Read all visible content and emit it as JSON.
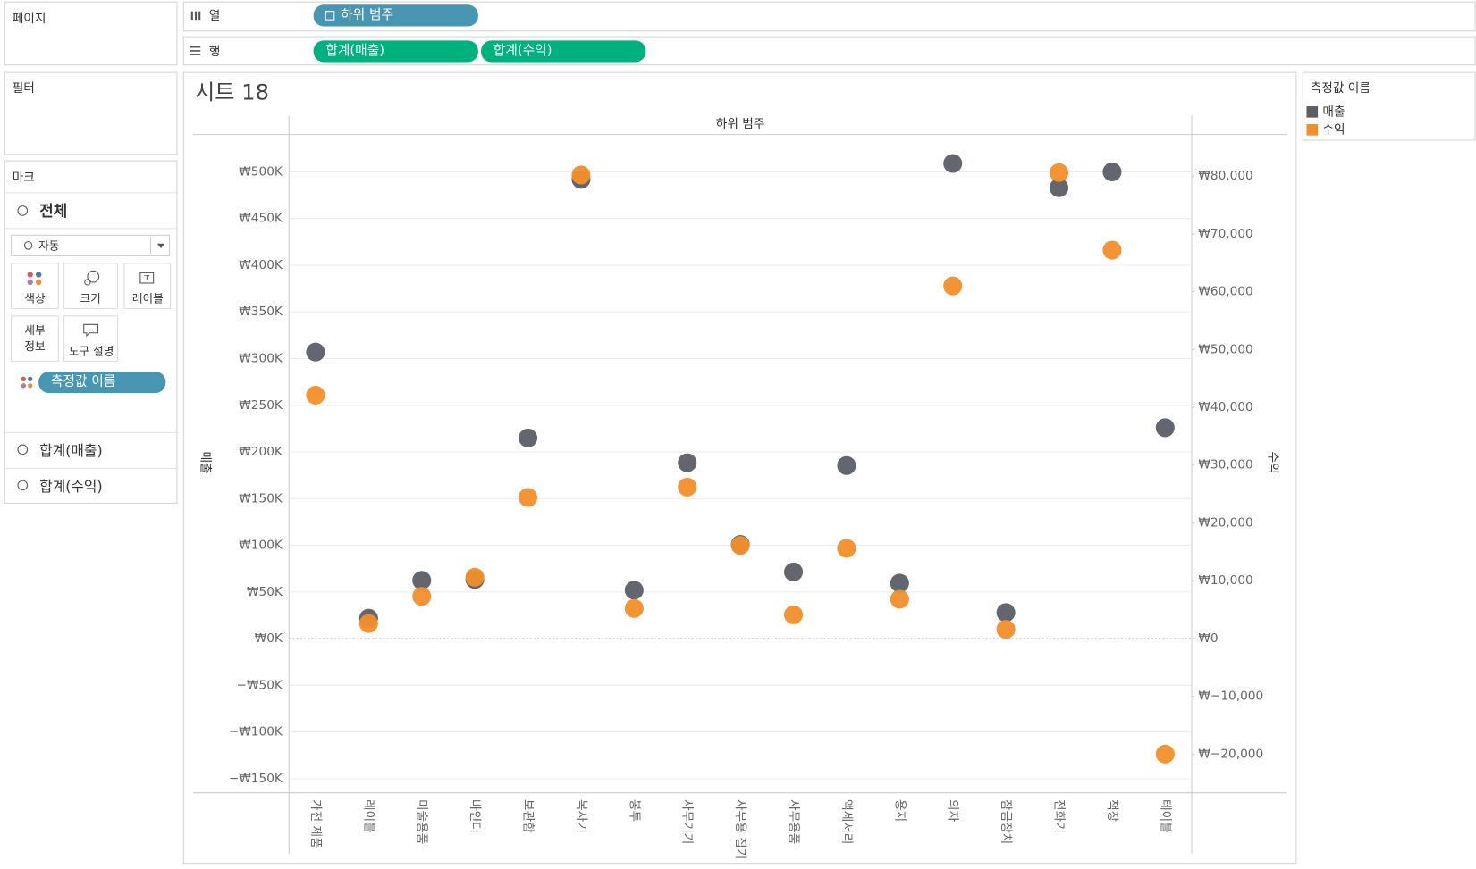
{
  "ui": {
    "pages": "페이지",
    "columns_label": "열",
    "columns_pills": [
      "하위 범주"
    ],
    "rows_label": "행",
    "rows_pills": [
      "합계(매출)",
      "합계(수익)"
    ],
    "filters": "필터",
    "marks": "마크",
    "marks_all": "전체",
    "mark_type": "자동",
    "mark_buttons": [
      "색상",
      "크기",
      "레이블"
    ],
    "detail_lines": [
      "세부",
      "정보"
    ],
    "tooltip": "도구 설명",
    "marks_pill": "측정값 이름",
    "marks_cards": [
      "합계(매출)",
      "합계(수익)"
    ],
    "sheet_title": "시트 18"
  },
  "chart_data": {
    "type": "scatter",
    "x_label": "하위 범주",
    "y_label": "매출",
    "y2_label": "수익",
    "legend_title": "측정값 이름",
    "legend": "right",
    "grid": true,
    "categories": [
      "가전 제품",
      "레이블",
      "미술용품",
      "바인더",
      "보관함",
      "복사기",
      "봉투",
      "사무기기",
      "사무용 집기",
      "사무용품",
      "액세서리",
      "용지",
      "의자",
      "잠금장치",
      "전화기",
      "책장",
      "테이블"
    ],
    "series": [
      {
        "name": "매출",
        "color": "#5b5e66",
        "values": [
          307000,
          22000,
          62500,
          63500,
          215000,
          492000,
          52000,
          188500,
          101000,
          71500,
          185500,
          59500,
          509000,
          28000,
          483000,
          500000,
          226000
        ]
      },
      {
        "name": "수익",
        "color": "#f28e2b",
        "axis": "y2",
        "values": [
          42100,
          2600,
          7300,
          10600,
          24400,
          80200,
          5200,
          26200,
          16100,
          4100,
          15600,
          6800,
          61000,
          1600,
          80600,
          67200,
          -20000
        ]
      }
    ],
    "ylim": [
      -165000,
      540000
    ],
    "yticks": [
      {
        "value": -150000,
        "label": "−₩150K"
      },
      {
        "value": -100000,
        "label": "−₩100K"
      },
      {
        "value": -50000,
        "label": "−₩50K"
      },
      {
        "value": 0,
        "label": "₩0K"
      },
      {
        "value": 50000,
        "label": "₩50K"
      },
      {
        "value": 100000,
        "label": "₩100K"
      },
      {
        "value": 150000,
        "label": "₩150K"
      },
      {
        "value": 200000,
        "label": "₩200K"
      },
      {
        "value": 250000,
        "label": "₩250K"
      },
      {
        "value": 300000,
        "label": "₩300K"
      },
      {
        "value": 350000,
        "label": "₩350K"
      },
      {
        "value": 400000,
        "label": "₩400K"
      },
      {
        "value": 450000,
        "label": "₩450K"
      },
      {
        "value": 500000,
        "label": "₩500K"
      }
    ],
    "y2lim": [
      -26700,
      87200
    ],
    "y2ticks": [
      {
        "value": -20000,
        "label": "₩−20,000"
      },
      {
        "value": -10000,
        "label": "₩−10,000"
      },
      {
        "value": 0,
        "label": "₩0"
      },
      {
        "value": 10000,
        "label": "₩10,000"
      },
      {
        "value": 20000,
        "label": "₩20,000"
      },
      {
        "value": 30000,
        "label": "₩30,000"
      },
      {
        "value": 40000,
        "label": "₩40,000"
      },
      {
        "value": 50000,
        "label": "₩50,000"
      },
      {
        "value": 60000,
        "label": "₩60,000"
      },
      {
        "value": 70000,
        "label": "₩70,000"
      },
      {
        "value": 80000,
        "label": "₩80,000"
      }
    ]
  }
}
